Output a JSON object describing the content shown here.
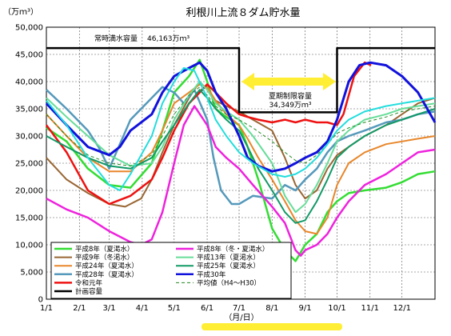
{
  "chart_data": {
    "type": "line",
    "title": "利根川上流８ダム貯水量",
    "ylabel": "（万ｍ³）",
    "xlabel": "（月/日）",
    "ylim": [
      0,
      50000
    ],
    "ytick_values": [
      0,
      5000,
      10000,
      15000,
      20000,
      25000,
      30000,
      35000,
      40000,
      45000,
      50000
    ],
    "ytick_labels": [
      "0",
      "5,000",
      "10,000",
      "15,000",
      "20,000",
      "25,000",
      "30,000",
      "35,000",
      "40,000",
      "45,000",
      "50,000"
    ],
    "xlim": [
      1,
      366
    ],
    "xtick_values": [
      1,
      32,
      60,
      91,
      121,
      152,
      182,
      213,
      244,
      274,
      305,
      335
    ],
    "xtick_labels": [
      "1/1",
      "2/1",
      "3/1",
      "4/1",
      "5/1",
      "6/1",
      "7/1",
      "8/1",
      "9/1",
      "10/1",
      "11/1",
      "12/1"
    ],
    "grid": true,
    "legend_position": "bottom-left",
    "annotations": [
      {
        "label": "常時満水容量",
        "value": "46,163万ｍ³"
      },
      {
        "label": "夏期制限容量",
        "value": "34,349万ｍ³"
      }
    ],
    "series": [
      {
        "name": "平成8年（夏渇水）",
        "color": "#33dd33",
        "width": 2.5,
        "x": [
          1,
          20,
          40,
          60,
          80,
          100,
          110,
          121,
          135,
          145,
          152,
          160,
          170,
          182,
          190,
          200,
          213,
          225,
          235,
          244,
          255,
          265,
          274,
          285,
          300,
          320,
          335,
          350,
          366
        ],
        "y": [
          31500,
          29000,
          24000,
          21000,
          20500,
          25000,
          31000,
          38000,
          41000,
          44000,
          40000,
          35000,
          33500,
          32000,
          28000,
          22000,
          13000,
          9000,
          7000,
          10000,
          12000,
          16000,
          18000,
          19500,
          20000,
          20500,
          21500,
          23000,
          23500
        ]
      },
      {
        "name": "平成9年（冬渇水）",
        "color": "#996633",
        "width": 2,
        "x": [
          1,
          20,
          40,
          60,
          75,
          90,
          100,
          110,
          121,
          135,
          145,
          152,
          160,
          170,
          182,
          195,
          213,
          225,
          235,
          244,
          255,
          265,
          274,
          285,
          300,
          320,
          335,
          350,
          366
        ],
        "y": [
          26000,
          22000,
          19500,
          17500,
          17000,
          18500,
          22000,
          27000,
          32000,
          37000,
          40000,
          38500,
          36500,
          35500,
          34500,
          33000,
          31000,
          26000,
          21000,
          18500,
          20000,
          24000,
          26500,
          28000,
          30000,
          32000,
          34000,
          36000,
          37000
        ]
      },
      {
        "name": "平成24年（夏渇水）",
        "color": "#e8862a",
        "width": 2,
        "x": [
          1,
          20,
          40,
          60,
          80,
          100,
          110,
          121,
          135,
          145,
          152,
          160,
          170,
          182,
          190,
          200,
          213,
          225,
          235,
          244,
          255,
          265,
          274,
          285,
          300,
          320,
          335,
          350,
          366
        ],
        "y": [
          34000,
          30000,
          26000,
          23500,
          23500,
          27000,
          31000,
          36000,
          38000,
          39500,
          39000,
          36500,
          34000,
          32000,
          29500,
          26000,
          22000,
          18000,
          14500,
          12500,
          12000,
          15000,
          21000,
          25000,
          27000,
          28500,
          29000,
          29500,
          30000
        ]
      },
      {
        "name": "平成28年（夏渇水）",
        "color": "#5599bb",
        "width": 2.5,
        "x": [
          1,
          20,
          40,
          50,
          60,
          80,
          100,
          110,
          121,
          130,
          140,
          152,
          158,
          165,
          175,
          182,
          195,
          213,
          225,
          235,
          244,
          255,
          265,
          274,
          285,
          300,
          320,
          335,
          350,
          366
        ],
        "y": [
          38500,
          35000,
          31000,
          28000,
          24000,
          33000,
          37000,
          39000,
          38000,
          36000,
          38500,
          33000,
          26000,
          20000,
          17500,
          17500,
          19000,
          18500,
          21000,
          20000,
          22000,
          24000,
          27000,
          29000,
          30000,
          31000,
          32500,
          33000,
          34000,
          34500
        ]
      },
      {
        "name": "令和元年",
        "color": "#ee1111",
        "width": 2.5,
        "x": [
          1,
          20,
          40,
          60,
          80,
          100,
          110,
          121,
          135,
          145,
          152,
          160,
          170,
          182,
          190,
          200,
          213,
          225,
          235,
          244,
          255,
          265,
          274,
          280,
          290,
          300,
          306
        ],
        "y": [
          32000,
          27000,
          20000,
          17500,
          19000,
          22000,
          26000,
          31000,
          36000,
          38000,
          39500,
          38000,
          36000,
          34000,
          33500,
          33000,
          32500,
          33000,
          32500,
          33000,
          32500,
          32500,
          32000,
          34000,
          41000,
          43500,
          43000
        ]
      },
      {
        "name": "計画容量",
        "color": "#000000",
        "width": 2.5,
        "x": [
          1,
          182,
          182,
          274,
          274,
          366
        ],
        "y": [
          46163,
          46163,
          34349,
          34349,
          46163,
          46163
        ]
      },
      {
        "name": "平成8年（冬・夏渇水）",
        "color": "#ee22dd",
        "width": 2.5,
        "x": [
          1,
          20,
          40,
          60,
          80,
          90,
          100,
          110,
          121,
          130,
          140,
          152,
          160,
          170,
          182,
          195,
          213,
          225,
          235,
          240,
          244,
          255,
          265,
          274,
          285,
          300,
          320,
          335,
          350,
          366
        ],
        "y": [
          18500,
          16500,
          15000,
          12500,
          10500,
          10000,
          11000,
          16000,
          25000,
          32000,
          35500,
          32000,
          28000,
          26000,
          24000,
          21000,
          17000,
          14000,
          9000,
          8000,
          9000,
          10000,
          12000,
          15000,
          18000,
          21000,
          23000,
          25000,
          27000,
          27500
        ]
      },
      {
        "name": "平成13年（夏渇水）",
        "color": "#66dd99",
        "width": 2,
        "x": [
          1,
          20,
          40,
          60,
          80,
          100,
          110,
          121,
          135,
          145,
          152,
          160,
          170,
          182,
          195,
          213,
          225,
          235,
          244,
          255,
          265,
          274,
          285,
          300,
          320,
          335,
          350,
          366
        ],
        "y": [
          37000,
          33500,
          30000,
          26500,
          24500,
          25000,
          28000,
          33000,
          37500,
          40000,
          38500,
          36000,
          34500,
          33000,
          30000,
          25000,
          19000,
          16000,
          17500,
          21000,
          25000,
          29000,
          31000,
          33000,
          34000,
          35000,
          35500,
          36000
        ]
      },
      {
        "name": "平成25年（夏渇水）",
        "color": "#119966",
        "width": 2,
        "x": [
          1,
          20,
          40,
          60,
          80,
          100,
          110,
          121,
          135,
          145,
          152,
          160,
          170,
          182,
          190,
          200,
          213,
          225,
          235,
          244,
          255,
          265,
          274,
          285,
          300,
          320,
          335,
          350,
          366
        ],
        "y": [
          30000,
          28000,
          26000,
          24500,
          24000,
          26000,
          29000,
          32000,
          36000,
          38500,
          37000,
          35000,
          33000,
          31000,
          28000,
          24000,
          20000,
          16000,
          14000,
          14500,
          18000,
          22000,
          26000,
          28000,
          30000,
          32000,
          33000,
          34000,
          35000
        ]
      },
      {
        "name": "平成30年",
        "color": "#1111dd",
        "width": 3,
        "x": [
          1,
          20,
          40,
          60,
          70,
          80,
          100,
          110,
          121,
          135,
          145,
          152,
          160,
          170,
          182,
          190,
          200,
          213,
          225,
          235,
          244,
          255,
          265,
          274,
          285,
          295,
          305,
          320,
          335,
          350,
          366
        ],
        "y": [
          36000,
          32000,
          28000,
          26500,
          28000,
          31000,
          34000,
          38000,
          41000,
          42500,
          43500,
          42000,
          38000,
          35000,
          30000,
          26000,
          24500,
          23500,
          24000,
          25000,
          26000,
          27000,
          29000,
          33000,
          40000,
          43000,
          43500,
          43000,
          41000,
          38000,
          32500
        ]
      },
      {
        "name": "平均値（H4～H30）",
        "color": "#228822",
        "width": 1,
        "dash": "4,3",
        "x": [
          1,
          20,
          40,
          60,
          80,
          100,
          110,
          121,
          135,
          145,
          152,
          160,
          170,
          182,
          195,
          213,
          225,
          235,
          244,
          255,
          265,
          274,
          285,
          300,
          320,
          335,
          350,
          366
        ],
        "y": [
          34000,
          30000,
          26500,
          25000,
          24500,
          26500,
          30000,
          34000,
          37500,
          39000,
          37500,
          35500,
          34000,
          33000,
          31500,
          29000,
          27000,
          25500,
          25000,
          26500,
          28500,
          30500,
          31500,
          32500,
          33500,
          34500,
          35000,
          35500
        ]
      },
      {
        "name": "平成14年",
        "color": "#22dddd",
        "width": 2,
        "x": [
          1,
          20,
          40,
          60,
          70,
          80,
          100,
          110,
          121,
          130,
          140,
          152,
          160,
          170,
          182,
          195,
          213,
          225,
          235,
          244,
          255,
          265,
          274,
          285,
          300,
          320,
          335,
          350,
          366
        ],
        "y": [
          36500,
          32000,
          26000,
          21000,
          20000,
          23000,
          30000,
          36000,
          40000,
          42500,
          42000,
          37000,
          33000,
          30000,
          27000,
          25000,
          23000,
          22500,
          23000,
          24000,
          26000,
          28500,
          31000,
          33000,
          34500,
          35500,
          36000,
          36500,
          37000
        ]
      }
    ]
  }
}
